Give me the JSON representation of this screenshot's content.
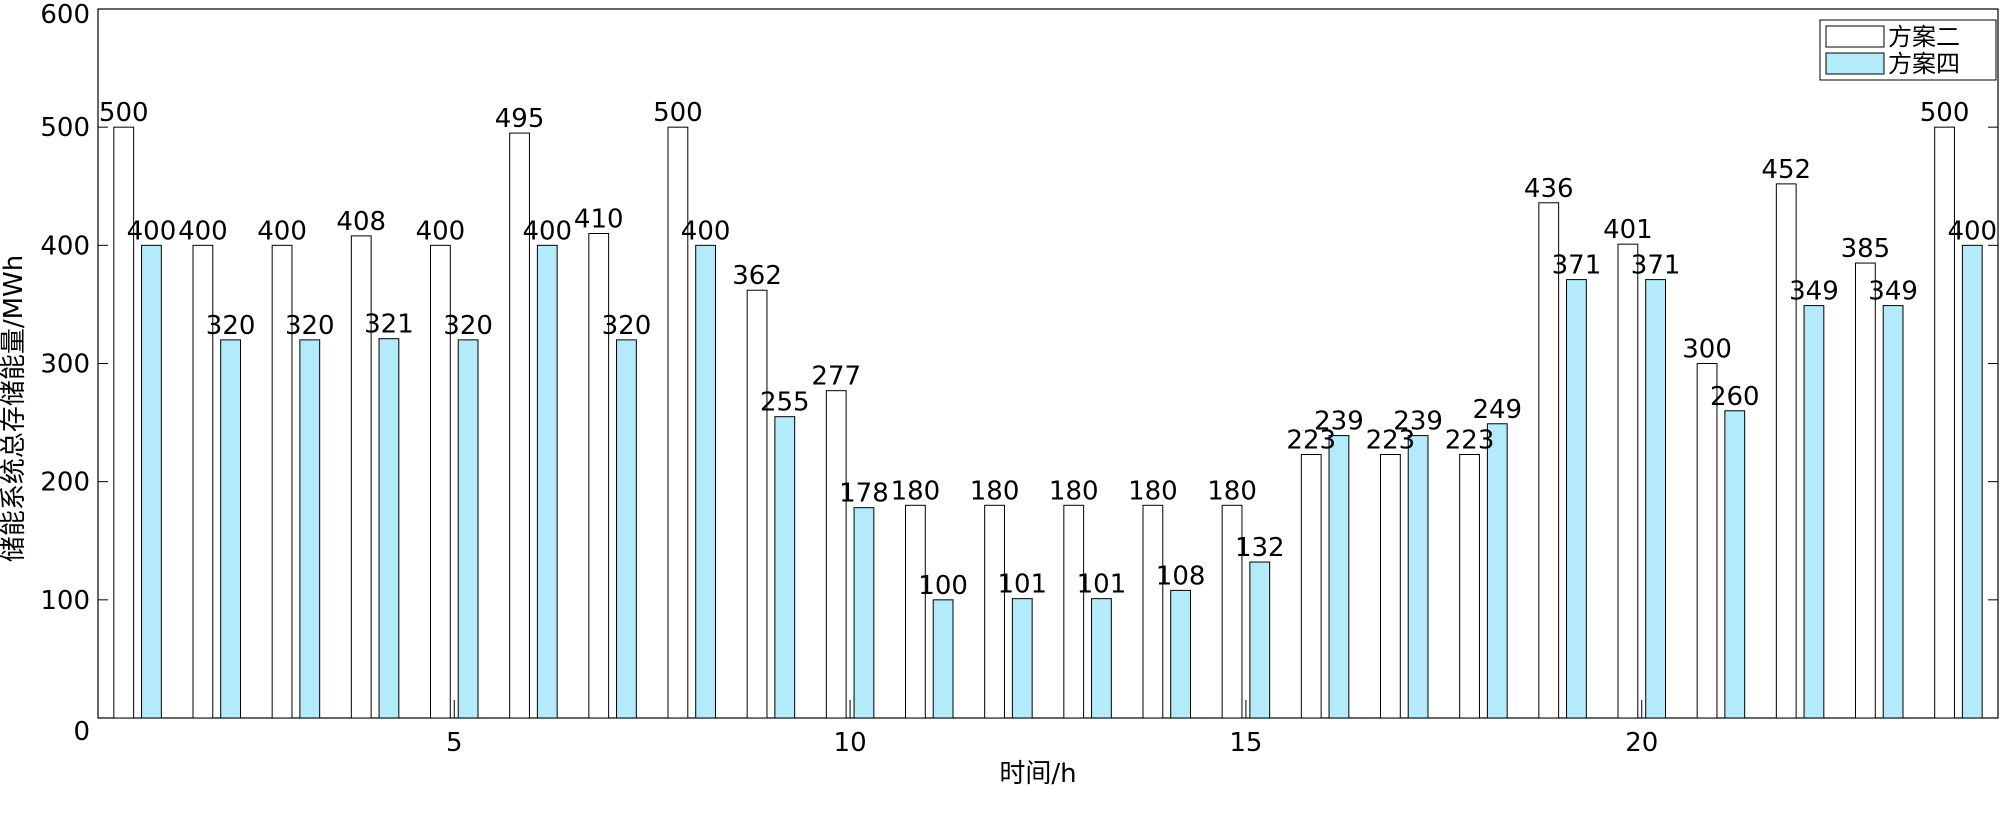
{
  "chart_data": {
    "type": "bar",
    "title": "",
    "xlabel": "时间/h",
    "ylabel": "储能系统总存储能量/MWh",
    "x": [
      1,
      2,
      3,
      4,
      5,
      6,
      7,
      8,
      9,
      10,
      11,
      12,
      13,
      14,
      15,
      16,
      17,
      18,
      19,
      20,
      21,
      22,
      23,
      24
    ],
    "xticks": [
      "5",
      "10",
      "15",
      "20"
    ],
    "xtick_values": [
      5,
      10,
      15,
      20
    ],
    "yticks": [
      "0",
      "100",
      "200",
      "300",
      "400",
      "500",
      "600"
    ],
    "ylim": [
      0,
      600
    ],
    "xlim": [
      0.5,
      24.5
    ],
    "grid": false,
    "legend_position": "top-right",
    "series": [
      {
        "name": "方案二",
        "color": "#ffffff",
        "values": [
          500,
          400,
          400,
          408,
          400,
          495,
          410,
          500,
          362,
          277,
          180,
          180,
          180,
          180,
          180,
          223,
          223,
          223,
          436,
          401,
          300,
          452,
          385,
          500
        ]
      },
      {
        "name": "方案四",
        "color": "#b3ebfa",
        "values": [
          400,
          320,
          320,
          321,
          320,
          400,
          320,
          400,
          255,
          178,
          100,
          101,
          101,
          108,
          132,
          239,
          239,
          249,
          371,
          371,
          260,
          349,
          349,
          400
        ]
      }
    ]
  }
}
